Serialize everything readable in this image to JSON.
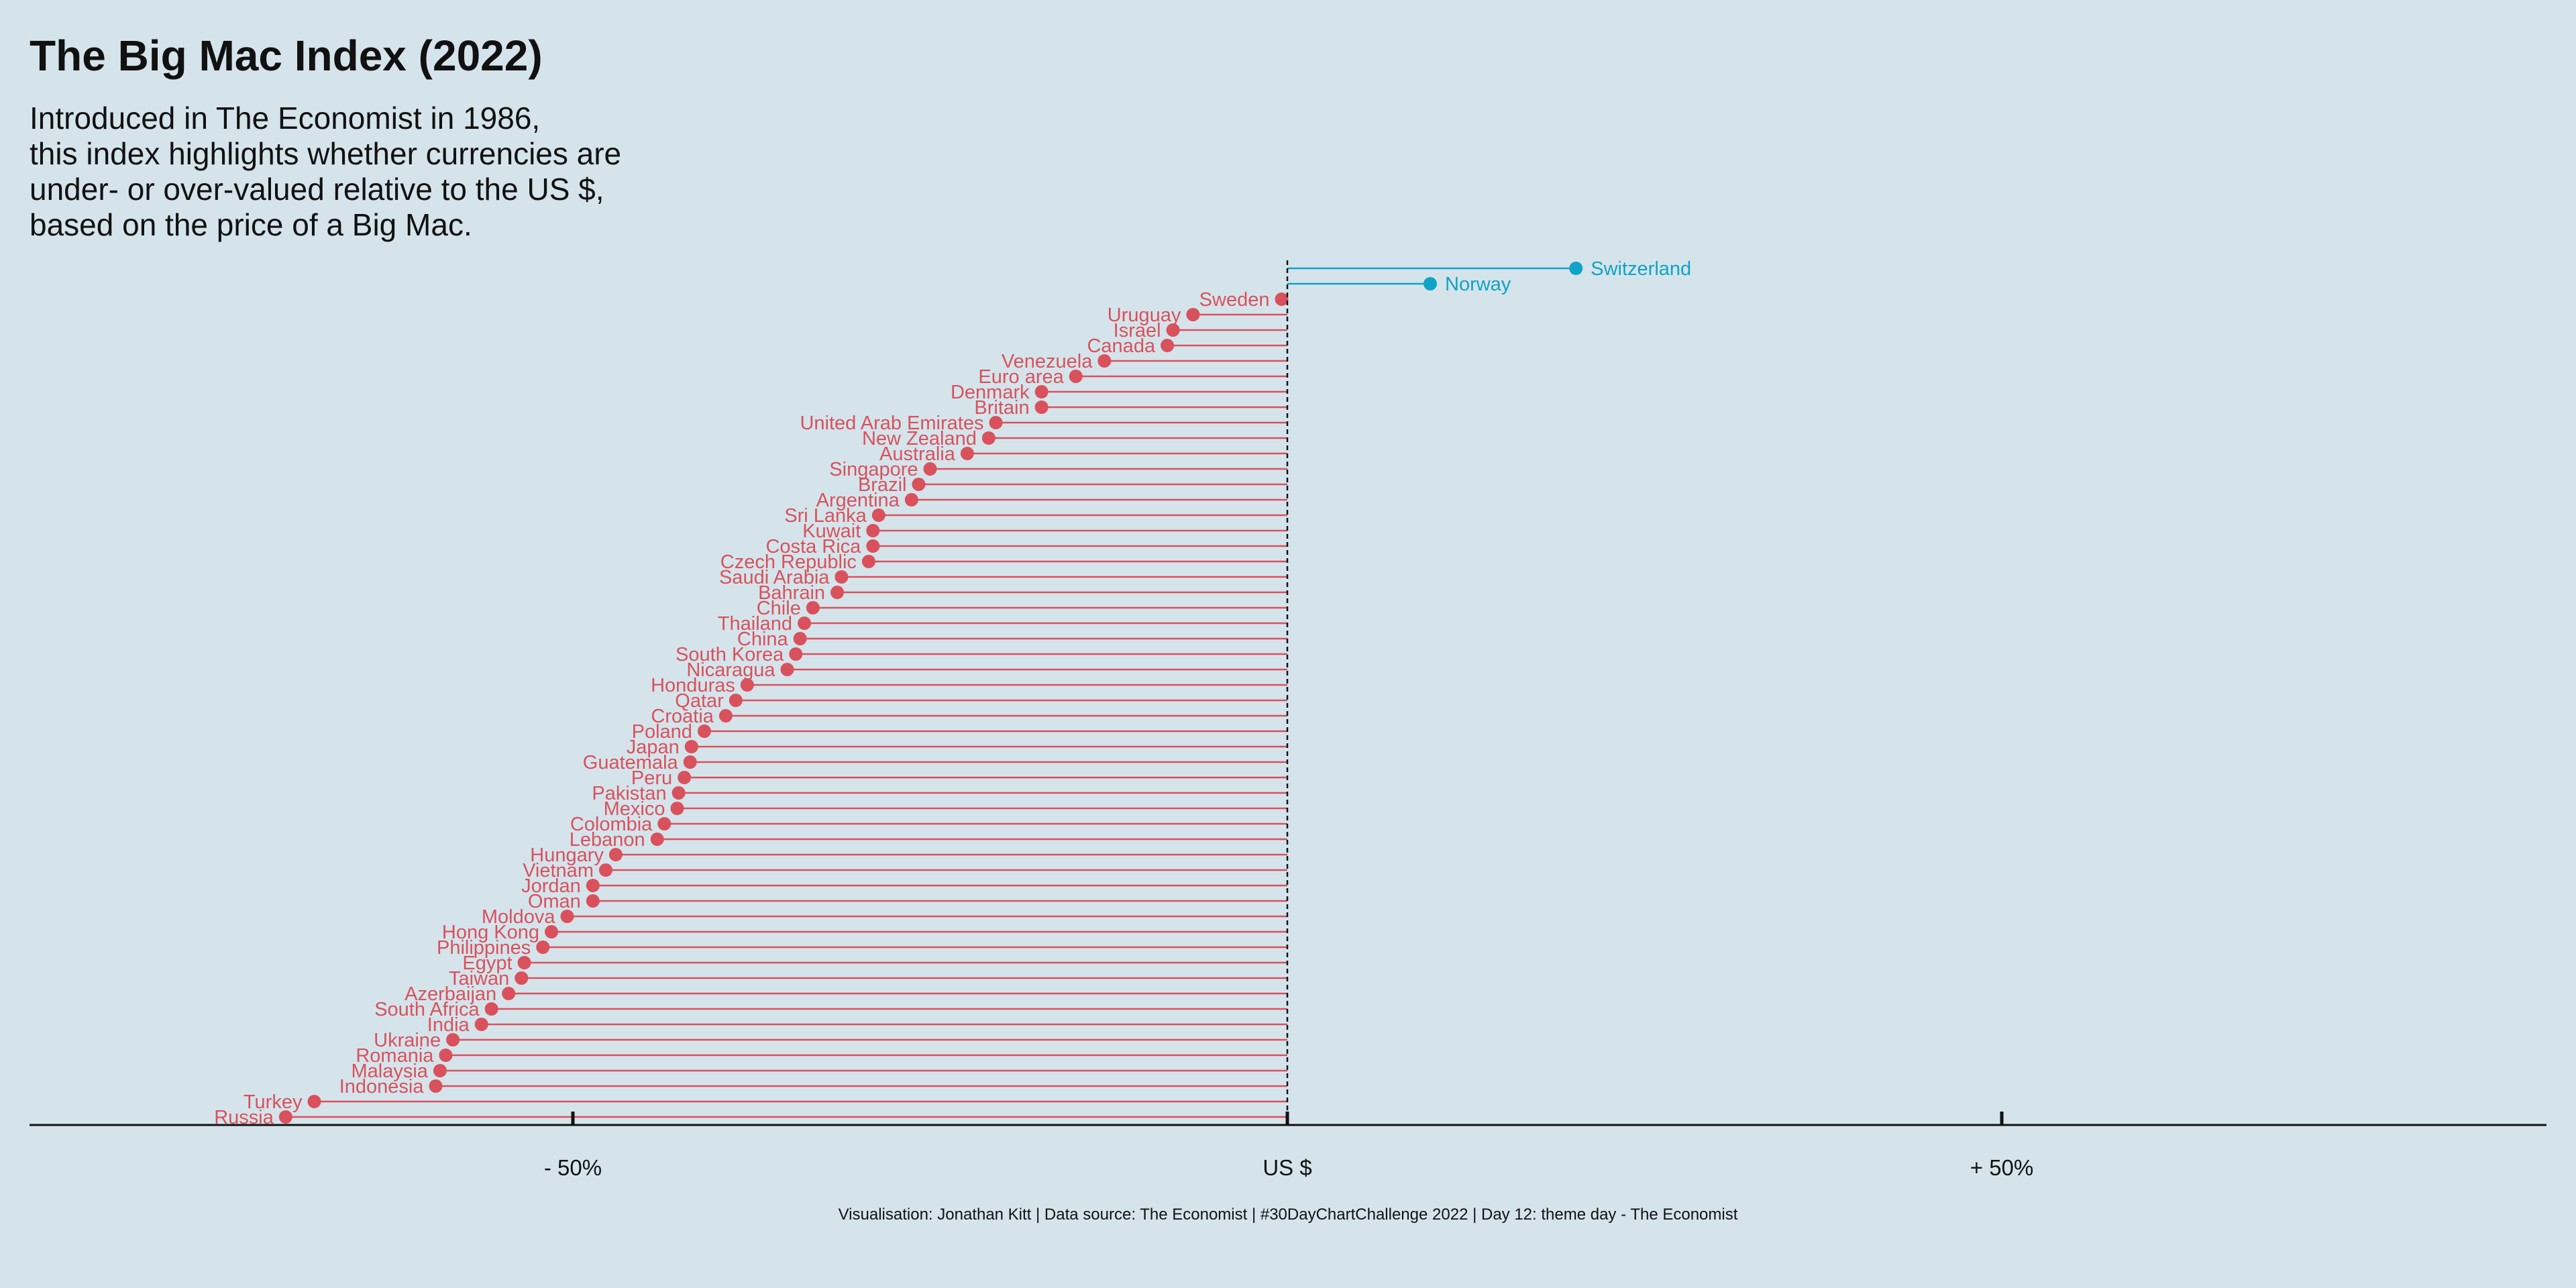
{
  "title": "The Big Mac Index (2022)",
  "subtitle_lines": [
    "Introduced in The Economist in 1986,",
    "this index highlights whether currencies are",
    "under- or over-valued relative to the US $,",
    "based on the price of a Big Mac."
  ],
  "caption": "Visualisation: Jonathan Kitt | Data source: The Economist | #30DayChartChallenge 2022 | Day 12: theme day - The Economist",
  "colors": {
    "background": "#d5e4eb",
    "over": "#0fa3c7",
    "under": "#d9515c",
    "axis": "#111111"
  },
  "chart_data": {
    "type": "lollipop",
    "xlabel": "",
    "ylabel": "",
    "unit": "% valuation vs US $",
    "xlim": [
      -88,
      88
    ],
    "x_ticks": [
      {
        "value": -50,
        "label": "- 50%"
      },
      {
        "value": 0,
        "label": "US $"
      },
      {
        "value": 50,
        "label": "+ 50%"
      }
    ],
    "grid": false,
    "reference_line": 0,
    "points": [
      {
        "country": "Switzerland",
        "value": 20.2
      },
      {
        "country": "Norway",
        "value": 10.0
      },
      {
        "country": "Sweden",
        "value": -0.4
      },
      {
        "country": "Uruguay",
        "value": -6.6
      },
      {
        "country": "Israel",
        "value": -8.0
      },
      {
        "country": "Canada",
        "value": -8.4
      },
      {
        "country": "Venezuela",
        "value": -12.8
      },
      {
        "country": "Euro area",
        "value": -14.8
      },
      {
        "country": "Denmark",
        "value": -17.2
      },
      {
        "country": "Britain",
        "value": -17.2
      },
      {
        "country": "United Arab Emirates",
        "value": -20.4
      },
      {
        "country": "New Zealand",
        "value": -20.9
      },
      {
        "country": "Australia",
        "value": -22.4
      },
      {
        "country": "Singapore",
        "value": -25.0
      },
      {
        "country": "Brazil",
        "value": -25.8
      },
      {
        "country": "Argentina",
        "value": -26.3
      },
      {
        "country": "Sri Lanka",
        "value": -28.6
      },
      {
        "country": "Kuwait",
        "value": -29.0
      },
      {
        "country": "Costa Rica",
        "value": -29.0
      },
      {
        "country": "Czech Republic",
        "value": -29.3
      },
      {
        "country": "Saudi Arabia",
        "value": -31.2
      },
      {
        "country": "Bahrain",
        "value": -31.5
      },
      {
        "country": "Chile",
        "value": -33.2
      },
      {
        "country": "Thailand",
        "value": -33.8
      },
      {
        "country": "China",
        "value": -34.1
      },
      {
        "country": "South Korea",
        "value": -34.4
      },
      {
        "country": "Nicaragua",
        "value": -35.0
      },
      {
        "country": "Honduras",
        "value": -37.8
      },
      {
        "country": "Qatar",
        "value": -38.6
      },
      {
        "country": "Croatia",
        "value": -39.3
      },
      {
        "country": "Poland",
        "value": -40.8
      },
      {
        "country": "Japan",
        "value": -41.7
      },
      {
        "country": "Guatemala",
        "value": -41.8
      },
      {
        "country": "Peru",
        "value": -42.2
      },
      {
        "country": "Pakistan",
        "value": -42.6
      },
      {
        "country": "Mexico",
        "value": -42.7
      },
      {
        "country": "Colombia",
        "value": -43.6
      },
      {
        "country": "Lebanon",
        "value": -44.1
      },
      {
        "country": "Hungary",
        "value": -47.0
      },
      {
        "country": "Vietnam",
        "value": -47.7
      },
      {
        "country": "Jordan",
        "value": -48.6
      },
      {
        "country": "Oman",
        "value": -48.6
      },
      {
        "country": "Moldova",
        "value": -50.4
      },
      {
        "country": "Hong Kong",
        "value": -51.5
      },
      {
        "country": "Philippines",
        "value": -52.1
      },
      {
        "country": "Egypt",
        "value": -53.4
      },
      {
        "country": "Taiwan",
        "value": -53.6
      },
      {
        "country": "Azerbaijan",
        "value": -54.5
      },
      {
        "country": "South Africa",
        "value": -55.7
      },
      {
        "country": "India",
        "value": -56.4
      },
      {
        "country": "Ukraine",
        "value": -58.4
      },
      {
        "country": "Romania",
        "value": -58.9
      },
      {
        "country": "Malaysia",
        "value": -59.3
      },
      {
        "country": "Indonesia",
        "value": -59.6
      },
      {
        "country": "Turkey",
        "value": -68.1
      },
      {
        "country": "Russia",
        "value": -70.1
      }
    ]
  }
}
